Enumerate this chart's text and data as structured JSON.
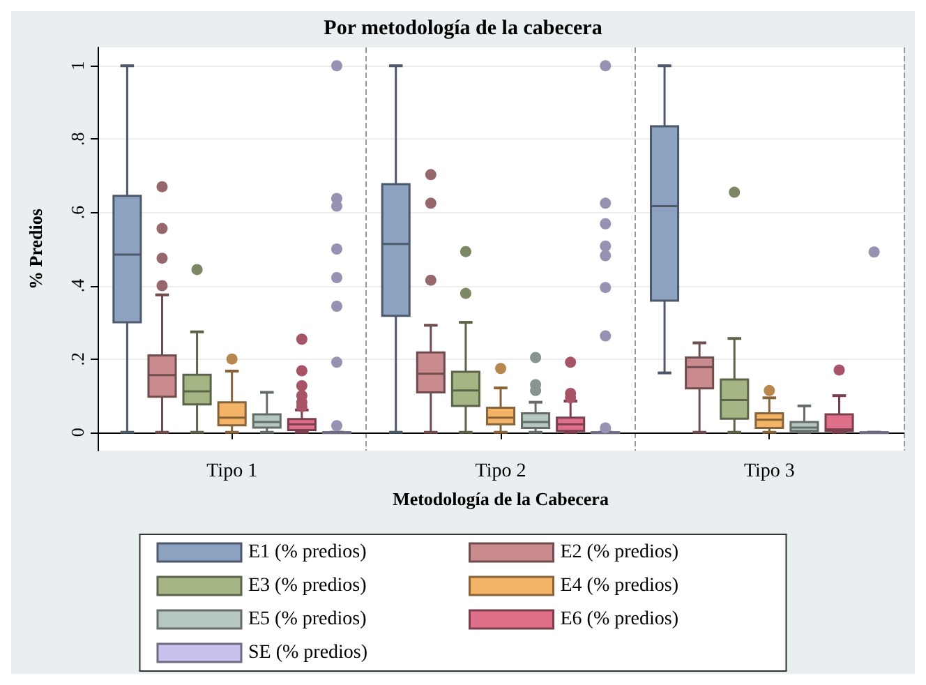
{
  "chart_data": {
    "type": "box",
    "title": "Por metodología de la cabecera",
    "xlabel": "Metodología de la Cabecera",
    "ylabel": "% Predios",
    "categories": [
      "Tipo 1",
      "Tipo 2",
      "Tipo 3"
    ],
    "ylim": [
      -0.05,
      1.05
    ],
    "yticks": [
      {
        "value": 0,
        "label": "0"
      },
      {
        "value": 0.2,
        "label": ".2"
      },
      {
        "value": 0.4,
        "label": ".4"
      },
      {
        "value": 0.6,
        "label": ".6"
      },
      {
        "value": 0.8,
        "label": ".8"
      },
      {
        "value": 1,
        "label": "1"
      }
    ],
    "grid": true,
    "legend": "bottom",
    "marker": "circle",
    "series": [
      {
        "name": "E1 (% predios)",
        "color": "#8ca2c0",
        "boxes": [
          {
            "low": 0,
            "q1": 0.3,
            "median": 0.485,
            "q3": 0.645,
            "high": 1
          },
          {
            "low": 0,
            "q1": 0.318,
            "median": 0.514,
            "q3": 0.677,
            "high": 1
          },
          {
            "low": 0.162,
            "q1": 0.359,
            "median": 0.617,
            "q3": 0.835,
            "high": 1
          }
        ]
      },
      {
        "name": "E2 (% predios)",
        "color": "#c98b8e",
        "boxes": [
          {
            "low": 0,
            "q1": 0.097,
            "median": 0.156,
            "q3": 0.21,
            "high": 0.375,
            "outliers": [
              0.67,
              0.556,
              0.475,
              0.4
            ]
          },
          {
            "low": 0,
            "q1": 0.109,
            "median": 0.16,
            "q3": 0.218,
            "high": 0.292,
            "outliers": [
              0.703,
              0.625,
              0.415
            ]
          },
          {
            "low": 0,
            "q1": 0.12,
            "median": 0.178,
            "q3": 0.204,
            "high": 0.244
          }
        ]
      },
      {
        "name": "E3 (% predios)",
        "color": "#a5b584",
        "boxes": [
          {
            "low": 0,
            "q1": 0.076,
            "median": 0.112,
            "q3": 0.157,
            "high": 0.274,
            "outliers": [
              0.444
            ]
          },
          {
            "low": 0,
            "q1": 0.072,
            "median": 0.114,
            "q3": 0.165,
            "high": 0.3,
            "outliers": [
              0.493,
              0.379
            ]
          },
          {
            "low": 0,
            "q1": 0.037,
            "median": 0.088,
            "q3": 0.144,
            "high": 0.256,
            "outliers": [
              0.655
            ]
          }
        ]
      },
      {
        "name": "E4 (% predios)",
        "color": "#f4b468",
        "boxes": [
          {
            "low": 0,
            "q1": 0.019,
            "median": 0.04,
            "q3": 0.082,
            "high": 0.167,
            "outliers": [
              0.2
            ]
          },
          {
            "low": 0,
            "q1": 0.022,
            "median": 0.04,
            "q3": 0.067,
            "high": 0.121,
            "outliers": [
              0.174
            ]
          },
          {
            "low": 0,
            "q1": 0.012,
            "median": 0.034,
            "q3": 0.052,
            "high": 0.094,
            "outliers": [
              0.114
            ]
          }
        ]
      },
      {
        "name": "E5 (% predios)",
        "color": "#b5c7bf",
        "boxes": [
          {
            "low": 0,
            "q1": 0.013,
            "median": 0.028,
            "q3": 0.049,
            "high": 0.109
          },
          {
            "low": 0,
            "q1": 0.012,
            "median": 0.028,
            "q3": 0.052,
            "high": 0.082,
            "outliers": [
              0.204,
              0.13,
              0.114
            ]
          },
          {
            "low": 0,
            "q1": 0.004,
            "median": 0.013,
            "q3": 0.028,
            "high": 0.072
          }
        ]
      },
      {
        "name": "E6 (% predios)",
        "color": "#e0708a",
        "boxes": [
          {
            "low": 0,
            "q1": 0.006,
            "median": 0.022,
            "q3": 0.036,
            "high": 0.061,
            "outliers": [
              0.254,
              0.168,
              0.127,
              0.1,
              0.082,
              0.07
            ]
          },
          {
            "low": 0,
            "q1": 0.004,
            "median": 0.022,
            "q3": 0.04,
            "high": 0.085,
            "outliers": [
              0.191,
              0.106,
              0.094
            ]
          },
          {
            "low": 0,
            "q1": 0.004,
            "median": 0.008,
            "q3": 0.049,
            "high": 0.1,
            "outliers": [
              0.17
            ]
          }
        ]
      },
      {
        "name": "SE (% predios)",
        "color": "#c9c2ec",
        "boxes": [
          {
            "low": 0,
            "q1": 0,
            "median": 0,
            "q3": 0,
            "high": 0,
            "outliers": [
              1,
              0.638,
              0.617,
              0.5,
              0.422,
              0.344,
              0.191,
              0.018
            ]
          },
          {
            "low": 0,
            "q1": 0,
            "median": 0,
            "q3": 0,
            "high": 0,
            "outliers": [
              1,
              0.625,
              0.569,
              0.508,
              0.482,
              0.395,
              0.263,
              0.012
            ]
          },
          {
            "low": 0,
            "q1": 0,
            "median": 0,
            "q3": 0,
            "high": 0,
            "outliers": [
              0.492
            ]
          }
        ]
      }
    ]
  }
}
